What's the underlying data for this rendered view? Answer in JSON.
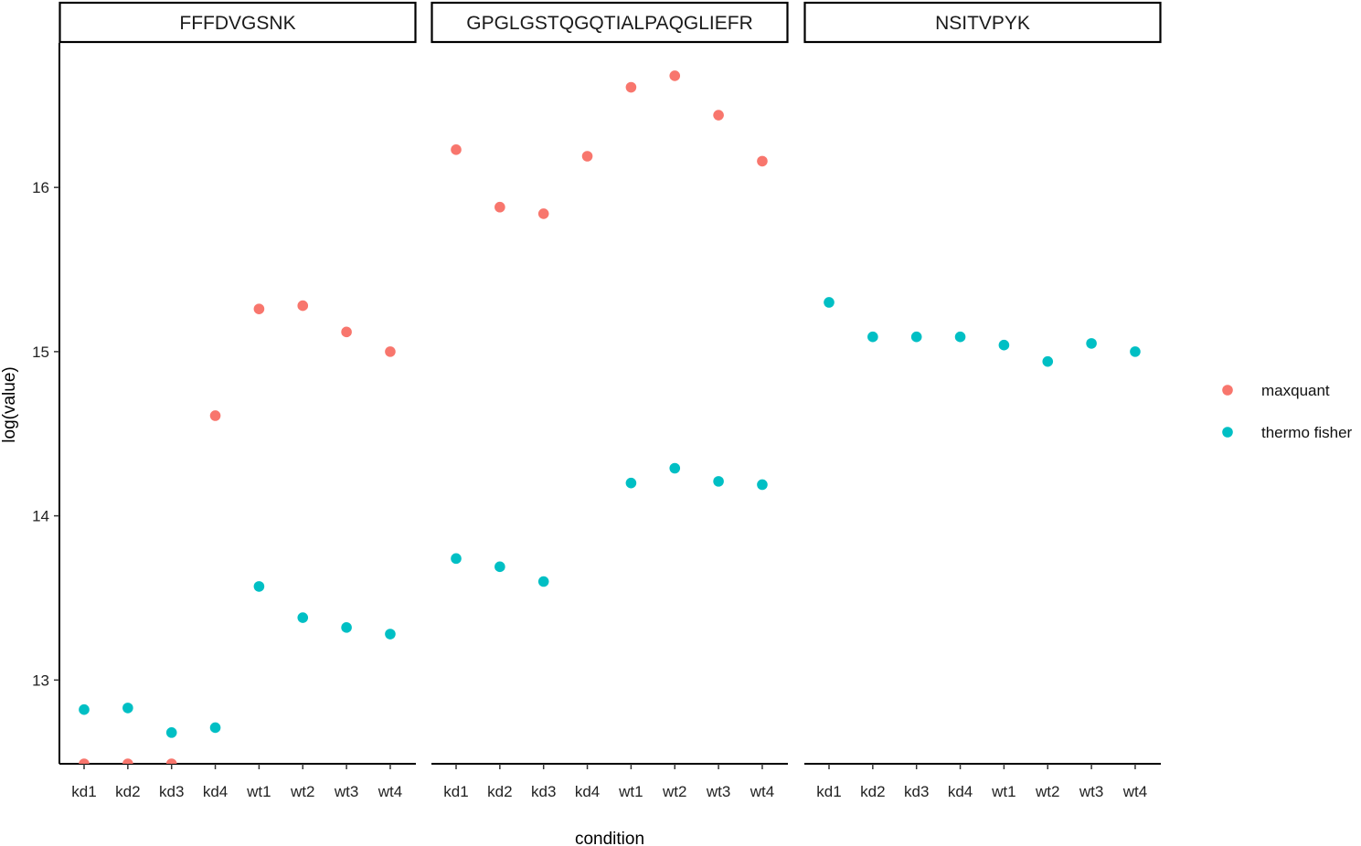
{
  "chart_data": {
    "type": "scatter",
    "xlabel": "condition",
    "ylabel": "log(value)",
    "categories": [
      "kd1",
      "kd2",
      "kd3",
      "kd4",
      "wt1",
      "wt2",
      "wt3",
      "wt4"
    ],
    "ylim": [
      12.49,
      16.88
    ],
    "yticks": [
      13,
      14,
      15,
      16
    ],
    "legend_position": "right",
    "series_colors": {
      "maxquant": "#F8766D",
      "thermo fisher": "#00BFC4"
    },
    "legend": [
      {
        "name": "maxquant",
        "color": "#F8766D"
      },
      {
        "name": "thermo fisher",
        "color": "#00BFC4"
      }
    ],
    "panels": [
      {
        "title": "FFFDVGSNK",
        "series": [
          {
            "name": "maxquant",
            "values": [
              12.49,
              12.49,
              12.49,
              14.61,
              15.26,
              15.28,
              15.12,
              15.0
            ]
          },
          {
            "name": "thermo fisher",
            "values": [
              12.82,
              12.83,
              12.68,
              12.71,
              13.57,
              13.38,
              13.32,
              13.28
            ]
          }
        ]
      },
      {
        "title": "GPGLGSTQGQTIALPAQGLIEFR",
        "series": [
          {
            "name": "maxquant",
            "values": [
              16.23,
              15.88,
              15.84,
              16.19,
              16.61,
              16.68,
              16.44,
              16.16
            ]
          },
          {
            "name": "thermo fisher",
            "values": [
              13.74,
              13.69,
              13.6,
              null,
              14.2,
              14.29,
              14.21,
              14.19
            ]
          }
        ]
      },
      {
        "title": "NSITVPYK",
        "series": [
          {
            "name": "maxquant",
            "values": [
              null,
              null,
              null,
              null,
              null,
              null,
              null,
              null
            ]
          },
          {
            "name": "thermo fisher",
            "values": [
              15.3,
              15.09,
              15.09,
              15.09,
              15.04,
              14.94,
              15.05,
              15.0
            ]
          }
        ]
      }
    ]
  }
}
